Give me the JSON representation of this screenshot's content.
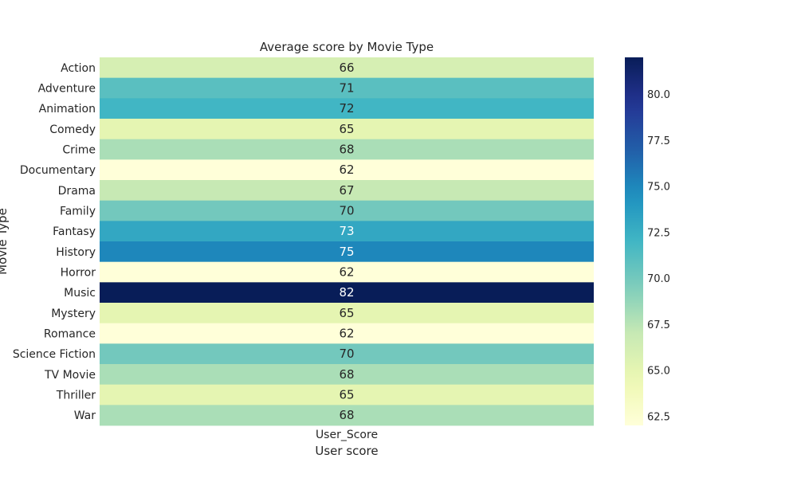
{
  "chart_data": {
    "type": "heatmap",
    "title": "Average score by Movie Type",
    "xlabel": "User score",
    "ylabel": "Movie Type",
    "columns": [
      "User_Score"
    ],
    "rows": [
      "Action",
      "Adventure",
      "Animation",
      "Comedy",
      "Crime",
      "Documentary",
      "Drama",
      "Family",
      "Fantasy",
      "History",
      "Horror",
      "Music",
      "Mystery",
      "Romance",
      "Science Fiction",
      "TV Movie",
      "Thriller",
      "War"
    ],
    "values": [
      66,
      71,
      72,
      65,
      68,
      62,
      67,
      70,
      73,
      75,
      62,
      82,
      65,
      62,
      70,
      68,
      65,
      68
    ],
    "color_range": [
      62,
      82
    ],
    "colormap": "YlGnBu",
    "colorbar_ticks": [
      62.5,
      65.0,
      67.5,
      70.0,
      72.5,
      75.0,
      77.5,
      80.0
    ],
    "colorbar_tick_labels": [
      "62.5",
      "65.0",
      "67.5",
      "70.0",
      "72.5",
      "75.0",
      "77.5",
      "80.0"
    ],
    "grid": false,
    "legend": "colorbar-right"
  }
}
